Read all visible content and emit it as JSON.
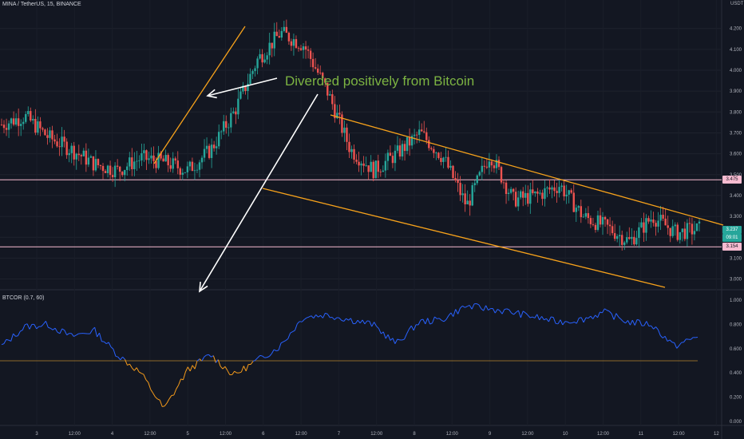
{
  "header": {
    "symbol": "MINA / TetherUS, 15, BINANCE",
    "currency": "USDT",
    "indicator": "BTCOR (0.7, 60)"
  },
  "annotation": {
    "text": "Diverded positively from Bitcoin",
    "color": "#7cb342"
  },
  "price_axis": {
    "ticks": [
      "4.200",
      "4.100",
      "4.000",
      "3.900",
      "3.800",
      "3.700",
      "3.600",
      "3.500",
      "3.400",
      "3.300",
      "3.200",
      "3.100",
      "3.000"
    ],
    "labels": {
      "resistance": "3.475",
      "current": "3.237",
      "countdown": "09:01",
      "support": "3.154"
    }
  },
  "indicator_axis": {
    "ticks": [
      "1.000",
      "0.800",
      "0.600",
      "0.400",
      "0.200",
      "0.000"
    ]
  },
  "time_axis": {
    "ticks": [
      "3",
      "12:00",
      "4",
      "12:00",
      "5",
      "12:00",
      "6",
      "12:00",
      "7",
      "12:00",
      "8",
      "12:00",
      "9",
      "12:00",
      "10",
      "12:00",
      "11",
      "12:00",
      "12"
    ]
  },
  "colors": {
    "background": "#131722",
    "up": "#26a69a",
    "down": "#ef5350",
    "trendline": "#f7a21b",
    "level": "#f8bbd0",
    "corr_high": "#2962ff",
    "corr_low": "#f59b1b",
    "arrow": "#ffffff"
  },
  "chart_data": {
    "type": "candlestick",
    "series": [
      {
        "name": "MINA / TetherUS",
        "x": [
          0,
          4,
          8,
          12,
          16,
          20,
          24,
          28,
          32,
          36,
          40,
          44,
          48,
          52,
          56,
          60,
          64,
          68,
          72,
          76,
          80,
          84,
          88,
          92,
          96,
          100,
          104,
          108,
          112,
          116,
          120
        ],
        "close": [
          3.74,
          3.78,
          3.68,
          3.62,
          3.55,
          3.52,
          3.58,
          3.56,
          3.52,
          3.62,
          3.8,
          4.05,
          4.18,
          4.12,
          3.9,
          3.62,
          3.52,
          3.6,
          3.7,
          3.58,
          3.35,
          3.6,
          3.38,
          3.4,
          3.45,
          3.3,
          3.25,
          3.18,
          3.3,
          3.22,
          3.24
        ]
      },
      {
        "name": "BTCOR (0.7, 60)",
        "x": [
          0,
          4,
          8,
          12,
          16,
          20,
          24,
          28,
          32,
          36,
          40,
          44,
          48,
          52,
          56,
          60,
          64,
          68,
          72,
          76,
          80,
          84,
          88,
          92,
          96,
          100,
          104,
          108,
          112,
          116,
          120
        ],
        "values": [
          0.62,
          0.78,
          0.8,
          0.7,
          0.75,
          0.55,
          0.4,
          0.1,
          0.42,
          0.55,
          0.38,
          0.5,
          0.62,
          0.86,
          0.88,
          0.84,
          0.8,
          0.64,
          0.82,
          0.84,
          0.95,
          0.93,
          0.9,
          0.86,
          0.82,
          0.84,
          0.9,
          0.82,
          0.8,
          0.62,
          0.7
        ]
      }
    ],
    "levels": [
      3.475,
      3.154
    ],
    "threshold": 0.5,
    "ylim_price": [
      2.96,
      4.26
    ],
    "ylim_indicator": [
      0.0,
      1.0
    ]
  }
}
